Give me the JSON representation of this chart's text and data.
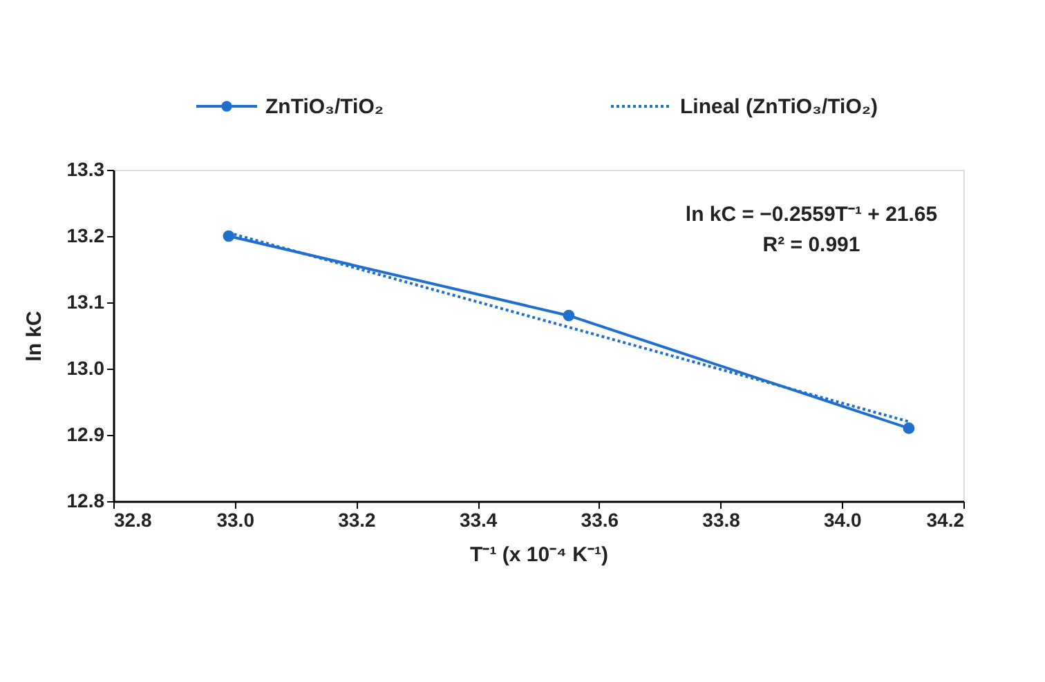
{
  "chart_data": {
    "type": "line",
    "xlabel": "T⁻¹ (x 10⁻⁴ K⁻¹)",
    "ylabel": "ln kC",
    "xlim": [
      32.8,
      34.2
    ],
    "xticks": [
      {
        "value": 32.8,
        "label": "32.8"
      },
      {
        "value": 33.0,
        "label": "33.0"
      },
      {
        "value": 33.2,
        "label": "33.2"
      },
      {
        "value": 33.4,
        "label": "33.4"
      },
      {
        "value": 33.6,
        "label": "33.6"
      },
      {
        "value": 33.8,
        "label": "33.8"
      },
      {
        "value": 34.0,
        "label": "34.0"
      },
      {
        "value": 34.2,
        "label": "34.2"
      }
    ],
    "ylim": [
      12.8,
      13.3
    ],
    "yticks": [
      {
        "value": 12.8,
        "label": "12.8"
      },
      {
        "value": 12.9,
        "label": "12.9"
      },
      {
        "value": 13.0,
        "label": "13.0"
      },
      {
        "value": 13.1,
        "label": "13.1"
      },
      {
        "value": 13.2,
        "label": "13.2"
      },
      {
        "value": 13.3,
        "label": "13.3"
      }
    ],
    "series": [
      {
        "name": "ZnTiO₃/TiO₂",
        "color": "#1f6fcf",
        "x": [
          32.99,
          33.55,
          34.11
        ],
        "values": [
          13.2,
          13.08,
          12.91
        ],
        "marker": "circle",
        "line_style": "solid"
      },
      {
        "name": "Lineal (ZnTiO₃/TiO₂)",
        "color": "#1f6fcf",
        "x": [
          32.99,
          34.11
        ],
        "values": [
          13.205,
          12.92
        ],
        "marker": "none",
        "line_style": "dotted"
      }
    ],
    "annotations": [
      "ln kC = −0.2559T⁻¹ + 21.65",
      "R² = 0.991"
    ],
    "legend": "top",
    "grid": false
  }
}
